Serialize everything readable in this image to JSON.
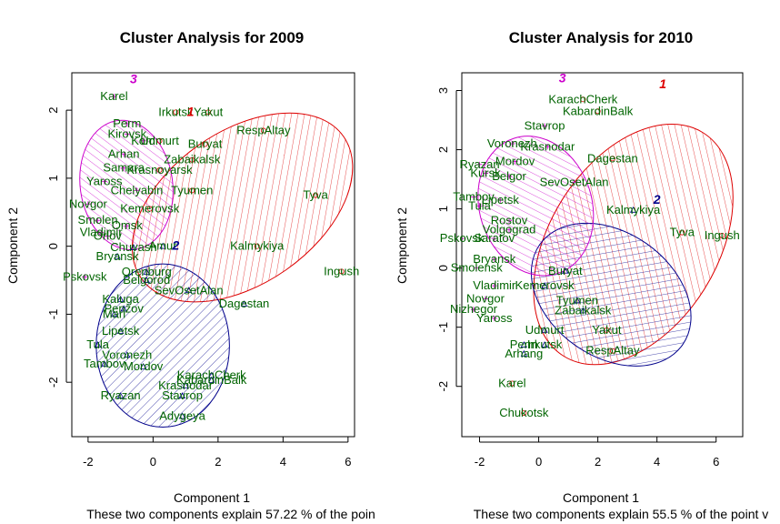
{
  "chart_data": [
    {
      "type": "scatter",
      "title": "Cluster Analysis for 2009",
      "xlabel": "Component 1",
      "ylabel": "Component 2",
      "sub": "These two components explain 57.22 % of the poin",
      "xlim": [
        -2.5,
        6.2
      ],
      "ylim": [
        -2.8,
        2.55
      ],
      "xticks": [
        -2,
        0,
        2,
        4,
        6
      ],
      "yticks": [
        -2,
        -1,
        0,
        1,
        2
      ],
      "clusters": [
        {
          "id": "1",
          "color": "#dd0000",
          "label_x": 1.15,
          "label_y": 1.97,
          "ellipse": {
            "cx": 2.75,
            "cy": 0.57,
            "rx": 3.8,
            "ry": 1.12,
            "angle": -35
          }
        },
        {
          "id": "2",
          "color": "#00008b",
          "label_x": 0.7,
          "label_y": 0.0,
          "ellipse": {
            "cx": 0.3,
            "cy": -1.46,
            "rx": 2.05,
            "ry": 1.2,
            "angle": 0
          }
        },
        {
          "id": "3",
          "color": "#cc00cc",
          "label_x": -0.6,
          "label_y": 2.45,
          "ellipse": {
            "cx": -0.82,
            "cy": 0.9,
            "rx": 2.0,
            "ry": 0.68,
            "angle": 82
          }
        }
      ],
      "points": [
        {
          "label": "Karel",
          "x": -1.2,
          "y": 2.2,
          "c": 3
        },
        {
          "label": "Irkutsk",
          "x": 0.7,
          "y": 1.97,
          "c": 1
        },
        {
          "label": "Yakut",
          "x": 1.7,
          "y": 1.97,
          "c": 1
        },
        {
          "label": "Perm",
          "x": -0.8,
          "y": 1.8,
          "c": 3
        },
        {
          "label": "RespAltay",
          "x": 3.4,
          "y": 1.7,
          "c": 1
        },
        {
          "label": "Kirovsk",
          "x": -0.8,
          "y": 1.65,
          "c": 3
        },
        {
          "label": "Kom",
          "x": -0.3,
          "y": 1.55,
          "c": 3
        },
        {
          "label": "Udmurt",
          "x": 0.2,
          "y": 1.55,
          "c": 1
        },
        {
          "label": "Buryat",
          "x": 1.6,
          "y": 1.5,
          "c": 1
        },
        {
          "label": "Arhan",
          "x": -0.9,
          "y": 1.35,
          "c": 3
        },
        {
          "label": "Zabaikalsk",
          "x": 1.2,
          "y": 1.27,
          "c": 1
        },
        {
          "label": "Samara",
          "x": -0.9,
          "y": 1.15,
          "c": 3
        },
        {
          "label": "Krasnoyarsk",
          "x": 0.2,
          "y": 1.12,
          "c": 1
        },
        {
          "label": "Yaross",
          "x": -1.5,
          "y": 0.95,
          "c": 3
        },
        {
          "label": "Chelyabin",
          "x": -0.5,
          "y": 0.82,
          "c": 3
        },
        {
          "label": "Tyumen",
          "x": 1.2,
          "y": 0.82,
          "c": 1
        },
        {
          "label": "Tyva",
          "x": 5.0,
          "y": 0.75,
          "c": 1
        },
        {
          "label": "Novgor",
          "x": -2.0,
          "y": 0.62,
          "c": 3
        },
        {
          "label": "Kemerovsk",
          "x": -0.1,
          "y": 0.55,
          "c": 1
        },
        {
          "label": "Smolen",
          "x": -1.7,
          "y": 0.38,
          "c": 3
        },
        {
          "label": "Omsk",
          "x": -0.8,
          "y": 0.3,
          "c": 3
        },
        {
          "label": "Vladimir",
          "x": -1.6,
          "y": 0.2,
          "c": 3
        },
        {
          "label": "Orlov",
          "x": -1.4,
          "y": 0.15,
          "c": 3
        },
        {
          "label": "Amur",
          "x": 0.3,
          "y": 0.0,
          "c": 2
        },
        {
          "label": "Chuvash",
          "x": -0.6,
          "y": -0.02,
          "c": 2
        },
        {
          "label": "Kalmykiya",
          "x": 3.2,
          "y": 0.0,
          "c": 1
        },
        {
          "label": "Bryansk",
          "x": -1.1,
          "y": -0.15,
          "c": 2
        },
        {
          "label": "Ingush",
          "x": 5.8,
          "y": -0.37,
          "c": 1
        },
        {
          "label": "Orenburg",
          "x": -0.2,
          "y": -0.38,
          "c": 2
        },
        {
          "label": "Pskovsk",
          "x": -2.1,
          "y": -0.45,
          "c": 3
        },
        {
          "label": "Belgorod",
          "x": -0.2,
          "y": -0.5,
          "c": 2
        },
        {
          "label": "SevOsetAlan",
          "x": 1.1,
          "y": -0.65,
          "c": 2
        },
        {
          "label": "Dagestan",
          "x": 2.8,
          "y": -0.85,
          "c": 2
        },
        {
          "label": "Kaluga",
          "x": -1.0,
          "y": -0.78,
          "c": 2
        },
        {
          "label": "Penzov",
          "x": -0.9,
          "y": -0.92,
          "c": 2
        },
        {
          "label": "Mari",
          "x": -1.2,
          "y": -1.0,
          "c": 2
        },
        {
          "label": "Lipetsk",
          "x": -1.0,
          "y": -1.25,
          "c": 2
        },
        {
          "label": "Tula",
          "x": -1.7,
          "y": -1.45,
          "c": 2
        },
        {
          "label": "Voronezh",
          "x": -0.8,
          "y": -1.6,
          "c": 2
        },
        {
          "label": "Tambov",
          "x": -1.5,
          "y": -1.73,
          "c": 2
        },
        {
          "label": "Mordov",
          "x": -0.3,
          "y": -1.77,
          "c": 2
        },
        {
          "label": "KarachCherk",
          "x": 1.8,
          "y": -1.9,
          "c": 2
        },
        {
          "label": "KabardinBalk",
          "x": 1.8,
          "y": -1.97,
          "c": 2
        },
        {
          "label": "Krasnodar",
          "x": 1.0,
          "y": -2.05,
          "c": 2
        },
        {
          "label": "Ryazan",
          "x": -1.0,
          "y": -2.2,
          "c": 2
        },
        {
          "label": "Stavrop",
          "x": 0.9,
          "y": -2.2,
          "c": 2
        },
        {
          "label": "Adygeya",
          "x": 0.9,
          "y": -2.5,
          "c": 2
        }
      ]
    },
    {
      "type": "scatter",
      "title": "Cluster Analysis for 2010",
      "xlabel": "Component 1",
      "ylabel": "Component 2",
      "sub": "These two components explain 55.5 % of the point v",
      "xlim": [
        -2.6,
        6.9
      ],
      "ylim": [
        -2.85,
        3.3
      ],
      "xticks": [
        -2,
        0,
        2,
        4,
        6
      ],
      "yticks": [
        -2,
        -1,
        0,
        1,
        2,
        3
      ],
      "clusters": [
        {
          "id": "1",
          "color": "#dd0000",
          "label_x": 4.2,
          "label_y": 3.1,
          "ellipse": {
            "cx": 3.2,
            "cy": 0.4,
            "rx": 4.45,
            "ry": 1.42,
            "angle": -58
          }
        },
        {
          "id": "2",
          "color": "#00008b",
          "label_x": 4.0,
          "label_y": 1.15,
          "ellipse": {
            "cx": 2.45,
            "cy": -0.45,
            "rx": 2.95,
            "ry": 1.05,
            "angle": 35
          }
        },
        {
          "id": "3",
          "color": "#cc00cc",
          "label_x": 0.8,
          "label_y": 3.2,
          "ellipse": {
            "cx": -0.1,
            "cy": 1.05,
            "rx": 2.4,
            "ry": 0.95,
            "angle": 72
          }
        }
      ],
      "points": [
        {
          "label": "KarachCherk",
          "x": 1.5,
          "y": 2.85,
          "c": 1
        },
        {
          "label": "KabardinBalk",
          "x": 2.0,
          "y": 2.65,
          "c": 1
        },
        {
          "label": "Stavrop",
          "x": 0.2,
          "y": 2.4,
          "c": 3
        },
        {
          "label": "Voronezh",
          "x": -0.9,
          "y": 2.1,
          "c": 3
        },
        {
          "label": "Krasnodar",
          "x": 0.3,
          "y": 2.05,
          "c": 3
        },
        {
          "label": "Dagestan",
          "x": 2.5,
          "y": 1.85,
          "c": 1
        },
        {
          "label": "Mordov",
          "x": -0.8,
          "y": 1.8,
          "c": 3
        },
        {
          "label": "Ryazan",
          "x": -2.0,
          "y": 1.75,
          "c": 3
        },
        {
          "label": "Kursk",
          "x": -1.8,
          "y": 1.6,
          "c": 3
        },
        {
          "label": "Belgor",
          "x": -1.0,
          "y": 1.55,
          "c": 3
        },
        {
          "label": "SevOsetAlan",
          "x": 1.2,
          "y": 1.45,
          "c": 3
        },
        {
          "label": "Tambov",
          "x": -2.2,
          "y": 1.2,
          "c": 3
        },
        {
          "label": "Lipetsk",
          "x": -1.3,
          "y": 1.15,
          "c": 3
        },
        {
          "label": "Tula",
          "x": -2.0,
          "y": 1.05,
          "c": 3
        },
        {
          "label": "Kalmykiya",
          "x": 3.2,
          "y": 0.98,
          "c": 2
        },
        {
          "label": "Rostov",
          "x": -1.0,
          "y": 0.8,
          "c": 3
        },
        {
          "label": "Volgograd",
          "x": -1.0,
          "y": 0.65,
          "c": 3
        },
        {
          "label": "Tyva",
          "x": 4.85,
          "y": 0.6,
          "c": 1
        },
        {
          "label": "Ingush",
          "x": 6.2,
          "y": 0.55,
          "c": 1
        },
        {
          "label": "Pskovsk",
          "x": -2.6,
          "y": 0.5,
          "c": 3
        },
        {
          "label": "Saratov",
          "x": -1.5,
          "y": 0.5,
          "c": 3
        },
        {
          "label": "Bryansk",
          "x": -1.5,
          "y": 0.15,
          "c": 3
        },
        {
          "label": "Smolensk",
          "x": -2.1,
          "y": 0.0,
          "c": 3
        },
        {
          "label": "Buryat",
          "x": 0.9,
          "y": -0.05,
          "c": 2
        },
        {
          "label": "Kemerovsk",
          "x": 0.2,
          "y": -0.3,
          "c": 2
        },
        {
          "label": "Vladimir",
          "x": -1.5,
          "y": -0.3,
          "c": 3
        },
        {
          "label": "Novgor",
          "x": -1.8,
          "y": -0.52,
          "c": 3
        },
        {
          "label": "Tyumen",
          "x": 1.3,
          "y": -0.55,
          "c": 2
        },
        {
          "label": "Nizhegor",
          "x": -2.2,
          "y": -0.7,
          "c": 3
        },
        {
          "label": "Zabaikalsk",
          "x": 1.5,
          "y": -0.72,
          "c": 2
        },
        {
          "label": "Yaross",
          "x": -1.5,
          "y": -0.85,
          "c": 3
        },
        {
          "label": "Udmurt",
          "x": 0.2,
          "y": -1.05,
          "c": 2
        },
        {
          "label": "Yakut",
          "x": 2.3,
          "y": -1.05,
          "c": 1
        },
        {
          "label": "Perm",
          "x": -0.5,
          "y": -1.3,
          "c": 2
        },
        {
          "label": "Irkutsk",
          "x": 0.2,
          "y": -1.3,
          "c": 2
        },
        {
          "label": "RespAltay",
          "x": 2.5,
          "y": -1.4,
          "c": 1
        },
        {
          "label": "Arhang",
          "x": -0.5,
          "y": -1.45,
          "c": 2
        },
        {
          "label": "Karel",
          "x": -0.9,
          "y": -1.95,
          "c": 1
        },
        {
          "label": "Chukotsk",
          "x": -0.5,
          "y": -2.45,
          "c": 1
        }
      ]
    }
  ]
}
